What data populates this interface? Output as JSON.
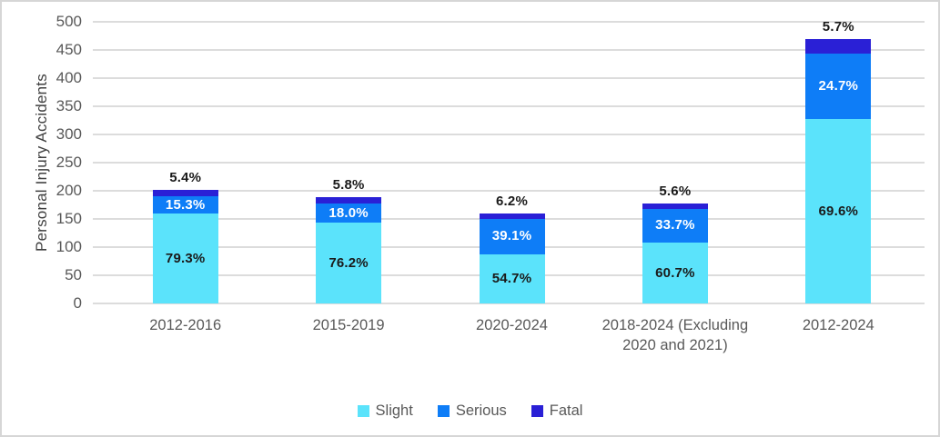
{
  "chart_data": {
    "type": "bar",
    "stacked": true,
    "title": "",
    "xlabel": "",
    "ylabel": "Personal Injury Accidents",
    "ylim": [
      0,
      500
    ],
    "ytick_step": 50,
    "yticks": [
      0,
      50,
      100,
      150,
      200,
      250,
      300,
      350,
      400,
      450,
      500
    ],
    "grid": "horizontal",
    "legend_position": "bottom",
    "categories": [
      "2012-2016",
      "2015-2019",
      "2020-2024",
      "2018-2024 (Excluding 2020 and 2021)",
      "2012-2024"
    ],
    "totals_approx": [
      201,
      188,
      160,
      178,
      470
    ],
    "series": [
      {
        "name": "Slight",
        "color": "#5BE3FB",
        "percent": [
          79.3,
          76.2,
          54.7,
          60.7,
          69.6
        ],
        "labels": [
          "79.3%",
          "76.2%",
          "54.7%",
          "60.7%",
          "69.6%"
        ],
        "values_approx": [
          159,
          143,
          88,
          108,
          327
        ],
        "label_color": "#1A1A1A",
        "label_position": "inside"
      },
      {
        "name": "Serious",
        "color": "#0E7DF7",
        "percent": [
          15.3,
          18.0,
          39.1,
          33.7,
          24.7
        ],
        "labels": [
          "15.3%",
          "18.0%",
          "39.1%",
          "33.7%",
          "24.7%"
        ],
        "values_approx": [
          31,
          34,
          63,
          60,
          116
        ],
        "label_color": "#FFFFFF",
        "label_position": "inside"
      },
      {
        "name": "Fatal",
        "color": "#2A20D6",
        "percent": [
          5.4,
          5.8,
          6.2,
          5.6,
          5.7
        ],
        "labels": [
          "5.4%",
          "5.8%",
          "6.2%",
          "5.6%",
          "5.7%"
        ],
        "values_approx": [
          11,
          11,
          10,
          10,
          27
        ],
        "label_color": "#1A1A1A",
        "label_position": "above"
      }
    ],
    "colors": {
      "axis_text": "#595959",
      "axis_title": "#404040",
      "gridline": "#DCDCDC",
      "frame_border": "#D6D6D6",
      "background": "#FFFFFF"
    }
  }
}
